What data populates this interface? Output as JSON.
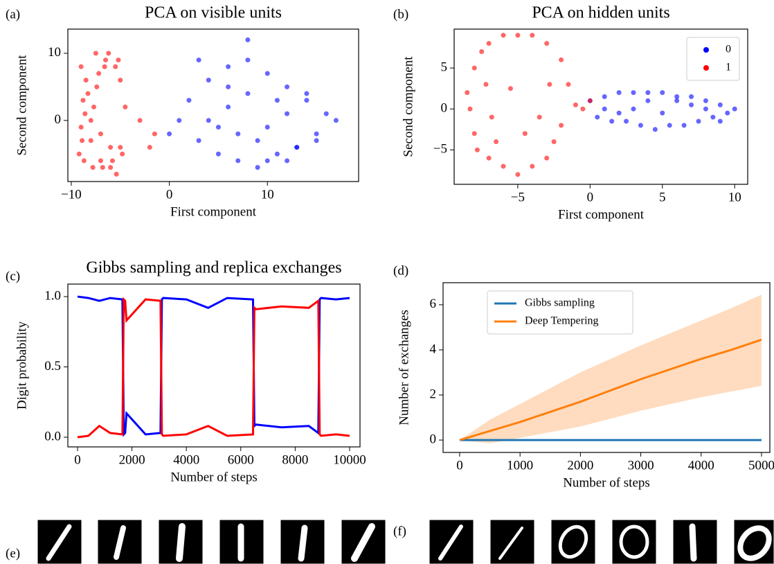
{
  "chart_data": [
    {
      "type": "scatter",
      "panel_label": "(a)",
      "title": "PCA on visible units",
      "x_label": "First component",
      "y_label": "Second component",
      "xlim": [
        -10.35,
        19.3
      ],
      "ylim": [
        -9.1,
        13.6
      ],
      "xticks": [
        {
          "value": -10,
          "label": "−10"
        },
        0,
        10
      ],
      "yticks": [
        0,
        10
      ],
      "series": [
        {
          "name": "1",
          "color": "#ff0000",
          "x": [
            -9,
            -8.5,
            -8.8,
            -7.5,
            -6.5,
            -5.5,
            -5,
            -8,
            -7,
            -6,
            -9.2,
            -8.7,
            -7.8,
            -6.8,
            -5.8,
            -4.8,
            -8.3,
            -7.2,
            -6.2,
            -5.2,
            -9,
            -8,
            -7,
            -4.5,
            -3,
            -1.5,
            -8.6,
            -7.4,
            -6,
            -5,
            -8.9,
            -7.7,
            -6.6,
            -5.4,
            -2
          ],
          "values": [
            8,
            6,
            3,
            10,
            9,
            8,
            6,
            0,
            -2,
            -4,
            -5,
            -6,
            -7,
            -7,
            -6,
            -5,
            4,
            7,
            10,
            9,
            -1,
            -3,
            -6,
            2,
            0,
            -2,
            1,
            5,
            -7,
            -4,
            -3,
            2,
            8,
            -8,
            -4
          ]
        },
        {
          "name": "0",
          "color": "#0000ff",
          "x": [
            2,
            4,
            6,
            8,
            10,
            12,
            14,
            16,
            3,
            5,
            7,
            9,
            11,
            13,
            15,
            17,
            1,
            6,
            8,
            10,
            12,
            4,
            9,
            14,
            7,
            11,
            5,
            13,
            3,
            8,
            10,
            15,
            6,
            12,
            0
          ],
          "values": [
            3,
            6,
            8,
            9,
            7,
            5,
            3,
            1,
            -3,
            -5,
            -6,
            -7,
            -5,
            -4,
            -2,
            0,
            0,
            2,
            4,
            -1,
            1,
            0,
            -3,
            4,
            -2,
            3,
            -1,
            -4,
            9,
            12,
            -6,
            -3,
            5,
            -6,
            -2
          ]
        }
      ]
    },
    {
      "type": "scatter",
      "panel_label": "(b)",
      "title": "PCA on hidden units",
      "x_label": "First component",
      "y_label": "Second component",
      "xlim": [
        -9.4,
        10.9
      ],
      "ylim": [
        -9.2,
        9.75
      ],
      "xticks": [
        {
          "value": -5,
          "label": "−5"
        },
        0,
        5,
        10
      ],
      "yticks": [
        {
          "value": -5,
          "label": "−5"
        },
        0,
        5
      ],
      "legend": "upper right",
      "series": [
        {
          "name": "0",
          "color": "#0000ff",
          "x": [
            0,
            1,
            2,
            3,
            4,
            5,
            6,
            7,
            8,
            9,
            10,
            0.5,
            1.5,
            2.5,
            3.5,
            4.5,
            5.5,
            6.5,
            7.5,
            8.5,
            9.5,
            3,
            5,
            7,
            1,
            6,
            8,
            4,
            2,
            9
          ],
          "values": [
            1,
            1.5,
            2,
            2,
            2,
            2,
            1.5,
            1.5,
            1,
            0.5,
            0,
            -1,
            -1.5,
            -1.5,
            -2,
            -2.5,
            -2,
            -2,
            -1.5,
            -1,
            -0.5,
            0,
            -0.5,
            0.5,
            0,
            1,
            0,
            1,
            -0.5,
            -1.5
          ]
        },
        {
          "name": "1",
          "color": "#ff0000",
          "x": [
            -8,
            -7.5,
            -7,
            -6,
            -5,
            -4,
            -3,
            -2,
            -1.5,
            -8.3,
            -8,
            -7,
            -6,
            -5,
            -4,
            -3,
            -2.5,
            -1,
            -7.8,
            -2,
            -6.5,
            -3.5,
            -5.5,
            -4.5,
            -8.5,
            -7.2,
            -2.8,
            0,
            -0.5,
            -6.8
          ],
          "values": [
            5,
            7,
            8,
            9,
            9,
            9,
            8,
            6,
            3,
            0,
            -3,
            -6,
            -7,
            -8,
            -7,
            -6,
            -4,
            0.5,
            -5,
            -2,
            -4,
            -1,
            2.5,
            -3,
            2,
            3,
            3,
            1,
            0,
            -1
          ]
        }
      ]
    },
    {
      "type": "line",
      "panel_label": "(c)",
      "title": "Gibbs sampling and replica exchanges",
      "x_label": "Number of steps",
      "y_label": "Digit probability",
      "xlim": [
        -356,
        10382
      ],
      "ylim": [
        -0.069,
        1.089
      ],
      "xticks": [
        0,
        2000,
        4000,
        6000,
        8000,
        10000
      ],
      "yticks": [
        {
          "value": 0,
          "label": "0.0"
        },
        {
          "value": 0.5,
          "label": "0.5"
        },
        {
          "value": 1,
          "label": "1.0"
        }
      ],
      "x": [
        0,
        400,
        800,
        1200,
        1650,
        1700,
        1750,
        1800,
        2500,
        3050,
        3100,
        3150,
        4000,
        4800,
        5500,
        6450,
        6500,
        6550,
        7500,
        8500,
        8850,
        8900,
        8950,
        9500,
        10000
      ],
      "series": [
        {
          "name": "blue",
          "color": "#0000ff",
          "values": [
            1,
            0.99,
            0.97,
            0.99,
            0.98,
            0.02,
            0.03,
            0.17,
            0.02,
            0.03,
            0.98,
            0.99,
            0.98,
            0.92,
            0.99,
            0.98,
            0.08,
            0.09,
            0.07,
            0.08,
            0.03,
            0.98,
            0.99,
            0.98,
            0.99
          ]
        },
        {
          "name": "red",
          "color": "#ff0000",
          "values": [
            0,
            0.01,
            0.08,
            0.03,
            0.02,
            0.98,
            0.97,
            0.83,
            0.98,
            0.97,
            0.02,
            0.01,
            0.02,
            0.08,
            0.01,
            0.02,
            0.92,
            0.91,
            0.93,
            0.92,
            0.97,
            0.02,
            0.01,
            0.02,
            0.01
          ]
        }
      ]
    },
    {
      "type": "band-line",
      "panel_label": "(d)",
      "x_label": "Number of steps",
      "y_label": "Number of exchanges",
      "xlim": [
        -275,
        5138
      ],
      "ylim": [
        -0.55,
        6.98
      ],
      "xticks": [
        0,
        1000,
        2000,
        3000,
        4000,
        5000
      ],
      "yticks": [
        0,
        2,
        4,
        6
      ],
      "legend": "upper left",
      "x": [
        0,
        500,
        1000,
        1500,
        2000,
        2500,
        3000,
        3500,
        4000,
        4500,
        5000
      ],
      "series": [
        {
          "name": "Gibbs sampling",
          "color": "#1f77b4",
          "values": [
            0,
            0,
            0,
            0,
            0,
            0,
            0,
            0,
            0,
            0,
            0
          ]
        },
        {
          "name": "Deep Tempering",
          "color": "#ff7f0e",
          "band_color": "#ffdcbf",
          "values": [
            0,
            0.4,
            0.8,
            1.25,
            1.7,
            2.2,
            2.7,
            3.15,
            3.6,
            4.0,
            4.45
          ],
          "lower": [
            0,
            -0.15,
            0.1,
            0.35,
            0.6,
            0.95,
            1.3,
            1.6,
            1.9,
            2.15,
            2.4
          ],
          "upper": [
            0,
            0.9,
            1.6,
            2.3,
            3.0,
            3.6,
            4.2,
            4.75,
            5.3,
            5.85,
            6.45
          ]
        }
      ]
    }
  ],
  "image_panels": [
    {
      "panel_label": "(e)"
    },
    {
      "panel_label": "(f)"
    }
  ]
}
